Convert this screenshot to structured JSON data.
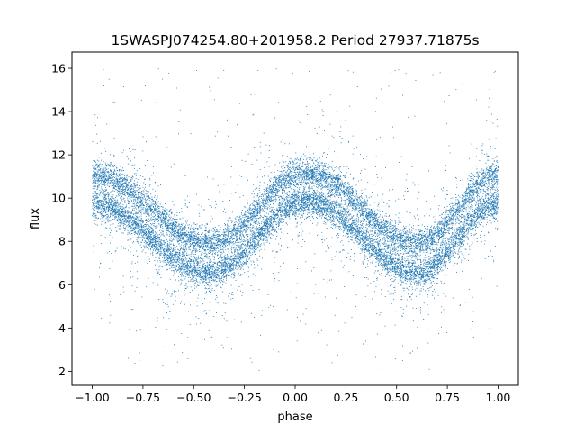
{
  "chart_data": {
    "type": "scatter",
    "title": "1SWASPJ074254.80+201958.2 Period 27937.71875s",
    "xlabel": "phase",
    "ylabel": "flux",
    "xlim": [
      -1.1,
      1.1
    ],
    "ylim": [
      1.35,
      16.75
    ],
    "xticks": [
      -1.0,
      -0.75,
      -0.5,
      -0.25,
      0.0,
      0.25,
      0.5,
      0.75,
      1.0
    ],
    "xtick_labels": [
      "−1.00",
      "−0.75",
      "−0.50",
      "−0.25",
      "0.00",
      "0.25",
      "0.50",
      "0.75",
      "1.00"
    ],
    "yticks": [
      2,
      4,
      6,
      8,
      10,
      12,
      14,
      16
    ],
    "ytick_labels": [
      "2",
      "4",
      "6",
      "8",
      "10",
      "12",
      "14",
      "16"
    ],
    "grid": false,
    "legend": "none",
    "marker_color": "#1f77b4",
    "series": [
      {
        "phase_range": [
          -1.0,
          1.0
        ],
        "envelope": {
          "maxima": [
            {
              "x": -1.0,
              "y": 10.2
            },
            {
              "x": 0.05,
              "y": 10.3
            },
            {
              "x": 1.0,
              "y": 10.2
            }
          ],
          "minima": [
            {
              "x": -0.42,
              "y": 7.0
            },
            {
              "x": 0.6,
              "y": 7.0
            }
          ],
          "upper_band_offset": 0.9,
          "lower_band_offset": -0.45
        },
        "observed_range": [
          2.0,
          16.0
        ],
        "point_count": 16000
      }
    ]
  }
}
